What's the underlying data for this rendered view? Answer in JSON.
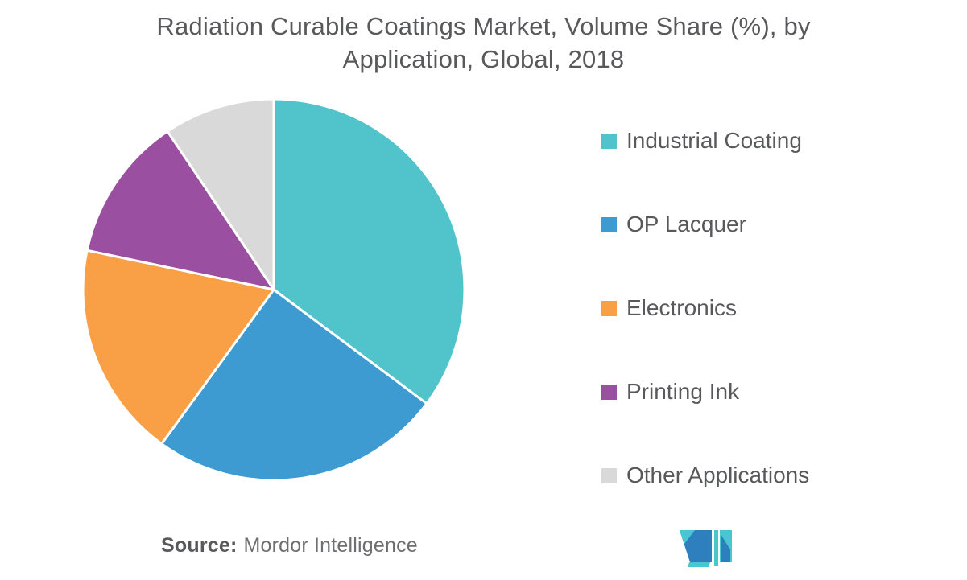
{
  "title": {
    "lines": [
      "Radiation Curable Coatings Market, Volume Share (%), by",
      "Application, Global, 2018"
    ],
    "color": "#58595B"
  },
  "chart_data": {
    "type": "pie",
    "title": "Radiation Curable Coatings Market, Volume Share (%), by Application, Global, 2018",
    "unit": "%",
    "start_angle_deg": 0,
    "direction": "clockwise",
    "legend_position": "right",
    "data_labels_shown": false,
    "slice_border_color": "#FFFFFF",
    "series": [
      {
        "label": "Industrial Coating",
        "value": 35.2,
        "color": "#50C4CA"
      },
      {
        "label": "OP Lacquer",
        "value": 24.8,
        "color": "#3E9BD2"
      },
      {
        "label": "Electronics",
        "value": 18.3,
        "color": "#F99F45"
      },
      {
        "label": "Printing Ink",
        "value": 12.3,
        "color": "#9B4FA0"
      },
      {
        "label": "Other Applications",
        "value": 9.4,
        "color": "#D9D9D9"
      }
    ]
  },
  "source": {
    "label": "Source:",
    "text": "Mordor Intelligence"
  },
  "logo": {
    "name": "Mordor Intelligence",
    "teal": "#4AC6D0",
    "blue": "#2E7FBE"
  }
}
